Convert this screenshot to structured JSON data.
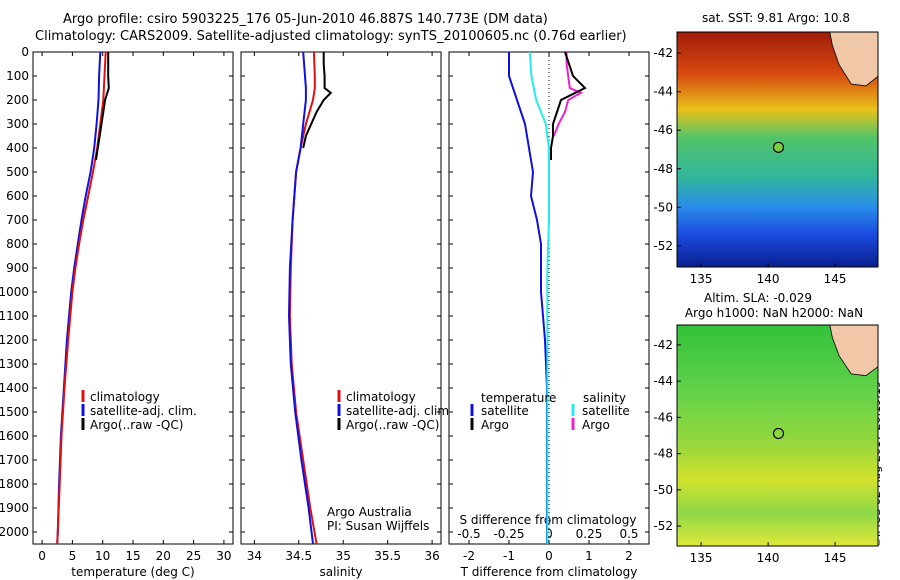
{
  "header": {
    "line1": "Argo profile: csiro 5903225_176 05-Jun-2010 46.887S 140.773E (DM data)",
    "line2": "Climatology: CARS2009. Satellite-adjusted climatology: synTS_20100605.nc (0.76d earlier)"
  },
  "credit": "©IMOS 02-Aug-2017 20:19:19",
  "colors": {
    "climatology": "#e01010",
    "satellite": "#1010e0",
    "argo": "#000000",
    "sal_satellite": "#22eeee",
    "sal_argo": "#ee22cc"
  },
  "chart_data": [
    {
      "type": "line",
      "xlabel": "temperature (deg C)",
      "xticks": [
        0,
        5,
        10,
        15,
        20,
        25,
        30
      ],
      "xlim": [
        -1.5,
        31.5
      ],
      "ylim": [
        0,
        2050
      ],
      "yticks": [
        0,
        100,
        200,
        300,
        400,
        500,
        600,
        700,
        800,
        900,
        1000,
        1100,
        1200,
        1300,
        1400,
        1500,
        1600,
        1700,
        1800,
        1900,
        2000
      ],
      "legend": [
        "climatology",
        "satellite-adj. clim.",
        "Argo(..raw -QC)"
      ],
      "legend_position": "lower-right",
      "series": [
        {
          "name": "climatology",
          "depth": [
            0,
            100,
            200,
            300,
            400,
            500,
            600,
            700,
            800,
            900,
            1000,
            1200,
            1400,
            1600,
            1800,
            2000,
            2050
          ],
          "values": [
            10.5,
            10.3,
            10.1,
            9.6,
            9.1,
            8.4,
            7.6,
            6.8,
            6.1,
            5.5,
            5.0,
            4.3,
            3.7,
            3.2,
            2.9,
            2.6,
            2.5
          ]
        },
        {
          "name": "satellite-adj. clim.",
          "depth": [
            0,
            100,
            200,
            300,
            400,
            500,
            600,
            700,
            800,
            900,
            1000,
            1200,
            1400,
            1600,
            1800,
            2000,
            2050
          ],
          "values": [
            9.6,
            9.4,
            9.3,
            9.0,
            8.6,
            8.0,
            7.2,
            6.5,
            5.9,
            5.3,
            4.8,
            4.1,
            3.6,
            3.1,
            2.8,
            2.6,
            2.5
          ]
        },
        {
          "name": "Argo(..raw -QC)",
          "depth": [
            0,
            50,
            100,
            150,
            200,
            250,
            300,
            350,
            400,
            450
          ],
          "values": [
            10.9,
            10.9,
            10.9,
            11.0,
            10.4,
            10.1,
            9.8,
            9.5,
            9.2,
            8.9
          ]
        }
      ]
    },
    {
      "type": "line",
      "xlabel": "salinity",
      "xticks": [
        34,
        34.5,
        35,
        35.5,
        36
      ],
      "xlim": [
        33.85,
        36.1
      ],
      "ylim": [
        0,
        2050
      ],
      "legend": [
        "climatology",
        "satellite-adj. clim.",
        "Argo(..raw -QC)"
      ],
      "legend_position": "lower-right",
      "annotation": [
        "Argo Australia",
        "PI: Susan Wijffels"
      ],
      "series": [
        {
          "name": "climatology",
          "depth": [
            0,
            100,
            150,
            200,
            300,
            400,
            500,
            700,
            900,
            1100,
            1300,
            1500,
            1700,
            1900,
            2050
          ],
          "values": [
            34.67,
            34.68,
            34.68,
            34.66,
            34.58,
            34.52,
            34.47,
            34.43,
            34.41,
            34.4,
            34.42,
            34.47,
            34.55,
            34.63,
            34.7
          ]
        },
        {
          "name": "satellite-adj. clim.",
          "depth": [
            0,
            100,
            150,
            200,
            300,
            400,
            500,
            700,
            900,
            1100,
            1300,
            1500,
            1700,
            1900,
            2050
          ],
          "values": [
            34.55,
            34.57,
            34.58,
            34.58,
            34.55,
            34.52,
            34.47,
            34.43,
            34.4,
            34.39,
            34.41,
            34.46,
            34.53,
            34.61,
            34.66
          ]
        },
        {
          "name": "Argo(..raw -QC)",
          "depth": [
            0,
            50,
            100,
            150,
            170,
            200,
            250,
            300,
            350,
            400
          ],
          "values": [
            34.78,
            34.78,
            34.79,
            34.79,
            34.86,
            34.78,
            34.7,
            34.64,
            34.58,
            34.55
          ]
        }
      ]
    },
    {
      "type": "line",
      "xlabel": "T difference from climatology",
      "xlabel2": "S difference from climatology",
      "xticks": [
        -2,
        -1,
        0,
        1,
        2
      ],
      "xticks2": [
        -0.5,
        -0.25,
        0,
        0.25,
        0.5
      ],
      "xlim": [
        -2.5,
        2.5
      ],
      "ylim": [
        0,
        2050
      ],
      "legend_temperature_title": "temperature",
      "legend_salinity_title": "salinity",
      "legend_satellite": "satellite",
      "legend_argo": "Argo",
      "series": [
        {
          "name": "temperature satellite",
          "depth": [
            0,
            100,
            200,
            300,
            400,
            500,
            600,
            700,
            800,
            1000,
            1200,
            1400,
            1600,
            1800,
            2000,
            2050
          ],
          "values": [
            -1.0,
            -1.0,
            -0.8,
            -0.6,
            -0.5,
            -0.4,
            -0.45,
            -0.3,
            -0.2,
            -0.2,
            -0.1,
            -0.05,
            -0.05,
            -0.05,
            -0.05,
            -0.05
          ]
        },
        {
          "name": "temperature Argo",
          "depth": [
            0,
            50,
            100,
            150,
            200,
            250,
            300,
            350,
            400,
            450
          ],
          "values": [
            0.4,
            0.5,
            0.6,
            0.9,
            0.3,
            0.2,
            0.1,
            0.1,
            0.05,
            0.05
          ]
        },
        {
          "name": "salinity satellite",
          "depth": [
            0,
            100,
            200,
            300,
            400,
            500,
            700,
            900,
            1100,
            1300,
            1500,
            1700,
            1900,
            2050
          ],
          "values": [
            -0.12,
            -0.11,
            -0.08,
            -0.02,
            0.0,
            0.0,
            0.0,
            -0.01,
            -0.01,
            -0.01,
            -0.01,
            -0.01,
            -0.01,
            -0.01
          ]
        },
        {
          "name": "salinity Argo",
          "depth": [
            0,
            50,
            100,
            150,
            170,
            200,
            250,
            300,
            350
          ],
          "values": [
            0.11,
            0.11,
            0.12,
            0.13,
            0.2,
            0.12,
            0.1,
            0.06,
            0.03
          ]
        }
      ]
    },
    {
      "type": "heatmap",
      "title": "sat. SST: 9.81  Argo: 10.8",
      "xticks": [
        135,
        140,
        145
      ],
      "yticks": [
        -42,
        -44,
        -46,
        -48,
        -50,
        -52
      ],
      "xlim": [
        133.2,
        148.2
      ],
      "ylim": [
        -53.1,
        -40.9
      ],
      "marker": {
        "lon": 140.773,
        "lat": -46.887
      }
    },
    {
      "type": "heatmap",
      "title": "Altim. SLA: -0.029",
      "subtitle": "Argo h1000: NaN h2000: NaN",
      "xticks": [
        135,
        140,
        145
      ],
      "yticks": [
        -42,
        -44,
        -46,
        -48,
        -50,
        -52
      ],
      "xlim": [
        133.2,
        148.2
      ],
      "ylim": [
        -53.1,
        -40.9
      ],
      "marker": {
        "lon": 140.773,
        "lat": -46.887
      }
    }
  ]
}
